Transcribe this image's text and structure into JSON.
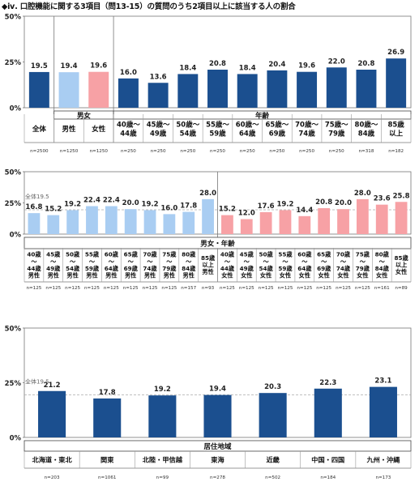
{
  "title": "◆ⅳ. 口腔機能に関する3項目（問13-15）の質問のうち2項目以上に該当する人の割合",
  "colors": {
    "navy": "#1B4F8F",
    "blue_light": "#A9CDF2",
    "pink": "#F7A1A5",
    "gray_line": "#AAAAAA"
  },
  "chart_data": [
    {
      "type": "bar",
      "ylim": [
        0,
        50
      ],
      "yticks": [
        "0%",
        "25%",
        "50%"
      ],
      "reference": null,
      "categories": [
        "全体",
        "男性",
        "女性",
        "40歳～44歳",
        "45歳～49歳",
        "50歳～54歳",
        "55歳～59歳",
        "60歳～64歳",
        "65歳～69歳",
        "70歳～74歳",
        "75歳～79歳",
        "80歳～84歳",
        "85歳以上"
      ],
      "tick_labels": [
        [
          "全体"
        ],
        [
          "男性"
        ],
        [
          "女性"
        ],
        [
          "40歳～",
          "44歳"
        ],
        [
          "45歳～",
          "49歳"
        ],
        [
          "50歳～",
          "54歳"
        ],
        [
          "55歳～",
          "59歳"
        ],
        [
          "60歳～",
          "64歳"
        ],
        [
          "65歳～",
          "69歳"
        ],
        [
          "70歳～",
          "74歳"
        ],
        [
          "75歳～",
          "79歳"
        ],
        [
          "80歳～",
          "84歳"
        ],
        [
          "85歳",
          "以上"
        ]
      ],
      "values": [
        19.5,
        19.4,
        19.6,
        16.0,
        13.6,
        18.4,
        20.8,
        18.4,
        20.4,
        19.6,
        22.0,
        20.8,
        26.9
      ],
      "value_labels": [
        "19.5",
        "19.4",
        "19.6",
        "16.0",
        "13.6",
        "18.4",
        "20.8",
        "18.4",
        "20.4",
        "19.6",
        "22.0",
        "20.8",
        "26.9"
      ],
      "n": [
        "n=2500",
        "n=1250",
        "n=1250",
        "n=250",
        "n=250",
        "n=250",
        "n=250",
        "n=250",
        "n=250",
        "n=250",
        "n=250",
        "n=318",
        "n=182"
      ],
      "colors": [
        "navy",
        "blue_light",
        "pink",
        "navy",
        "navy",
        "navy",
        "navy",
        "navy",
        "navy",
        "navy",
        "navy",
        "navy",
        "navy"
      ],
      "groups": [
        {
          "label": "",
          "from": 0,
          "to": 0
        },
        {
          "label": "男女",
          "from": 1,
          "to": 2
        },
        {
          "label": "年齢",
          "from": 3,
          "to": 12
        }
      ]
    },
    {
      "type": "bar",
      "ylim": [
        0,
        50
      ],
      "yticks": [
        "0%",
        "25%",
        "50%"
      ],
      "reference": {
        "label": "全体19.5",
        "value": 19.5
      },
      "categories": [
        "40歳～44歳男性",
        "45歳～49歳男性",
        "50歳～54歳男性",
        "55歳～59歳男性",
        "60歳～64歳男性",
        "65歳～69歳男性",
        "70歳～74歳男性",
        "75歳～79歳男性",
        "80歳～84歳男性",
        "85歳以上男性",
        "40歳～44歳女性",
        "45歳～49歳女性",
        "50歳～54歳女性",
        "55歳～59歳女性",
        "60歳～64歳女性",
        "65歳～69歳女性",
        "70歳～74歳女性",
        "75歳～79歳女性",
        "80歳～84歳女性",
        "85歳以上女性"
      ],
      "tick_labels": [
        [
          "40歳",
          "～",
          "44歳",
          "男性"
        ],
        [
          "45歳",
          "～",
          "49歳",
          "男性"
        ],
        [
          "50歳",
          "～",
          "54歳",
          "男性"
        ],
        [
          "55歳",
          "～",
          "59歳",
          "男性"
        ],
        [
          "60歳",
          "～",
          "64歳",
          "男性"
        ],
        [
          "65歳",
          "～",
          "69歳",
          "男性"
        ],
        [
          "70歳",
          "～",
          "74歳",
          "男性"
        ],
        [
          "75歳",
          "～",
          "79歳",
          "男性"
        ],
        [
          "80歳",
          "～",
          "84歳",
          "男性"
        ],
        [
          "85歳",
          "以上",
          "男性"
        ],
        [
          "40歳",
          "～",
          "44歳",
          "女性"
        ],
        [
          "45歳",
          "～",
          "49歳",
          "女性"
        ],
        [
          "50歳",
          "～",
          "54歳",
          "女性"
        ],
        [
          "55歳",
          "～",
          "59歳",
          "女性"
        ],
        [
          "60歳",
          "～",
          "64歳",
          "女性"
        ],
        [
          "65歳",
          "～",
          "69歳",
          "女性"
        ],
        [
          "70歳",
          "～",
          "74歳",
          "女性"
        ],
        [
          "75歳",
          "～",
          "79歳",
          "女性"
        ],
        [
          "80歳",
          "～",
          "84歳",
          "女性"
        ],
        [
          "85歳",
          "以上",
          "女性"
        ]
      ],
      "values": [
        16.8,
        15.2,
        19.2,
        22.4,
        22.4,
        20.0,
        19.2,
        16.0,
        17.8,
        28.0,
        15.2,
        12.0,
        17.6,
        19.2,
        14.4,
        20.8,
        20.0,
        28.0,
        23.6,
        25.8
      ],
      "value_labels": [
        "16.8",
        "15.2",
        "19.2",
        "22.4",
        "22.4",
        "20.0",
        "19.2",
        "16.0",
        "17.8",
        "28.0",
        "15.2",
        "12.0",
        "17.6",
        "19.2",
        "14.4",
        "20.8",
        "20.0",
        "28.0",
        "23.6",
        "25.8"
      ],
      "n": [
        "n=125",
        "n=125",
        "n=125",
        "n=125",
        "n=125",
        "n=125",
        "n=125",
        "n=125",
        "n=157",
        "n=93",
        "n=125",
        "n=125",
        "n=125",
        "n=125",
        "n=125",
        "n=125",
        "n=125",
        "n=125",
        "n=161",
        "n=89"
      ],
      "colors": [
        "blue_light",
        "blue_light",
        "blue_light",
        "blue_light",
        "blue_light",
        "blue_light",
        "blue_light",
        "blue_light",
        "blue_light",
        "blue_light",
        "pink",
        "pink",
        "pink",
        "pink",
        "pink",
        "pink",
        "pink",
        "pink",
        "pink",
        "pink"
      ],
      "groups": [
        {
          "label": "男女・年齢",
          "from": 0,
          "to": 19
        }
      ]
    },
    {
      "type": "bar",
      "ylim": [
        0,
        50
      ],
      "yticks": [
        "0%",
        "25%",
        "50%"
      ],
      "reference": {
        "label": "全体19.5",
        "value": 19.5
      },
      "categories": [
        "北海道・東北",
        "関東",
        "北陸・甲信越",
        "東海",
        "近畿",
        "中国・四国",
        "九州・沖縄"
      ],
      "tick_labels": [
        [
          "北海道・東北"
        ],
        [
          "関東"
        ],
        [
          "北陸・甲信越"
        ],
        [
          "東海"
        ],
        [
          "近畿"
        ],
        [
          "中国・四国"
        ],
        [
          "九州・沖縄"
        ]
      ],
      "values": [
        21.2,
        17.8,
        19.2,
        19.4,
        20.3,
        22.3,
        23.1
      ],
      "value_labels": [
        "21.2",
        "17.8",
        "19.2",
        "19.4",
        "20.3",
        "22.3",
        "23.1"
      ],
      "n": [
        "n=203",
        "n=1061",
        "n=99",
        "n=278",
        "n=502",
        "n=184",
        "n=173"
      ],
      "colors": [
        "navy",
        "navy",
        "navy",
        "navy",
        "navy",
        "navy",
        "navy"
      ],
      "groups": [
        {
          "label": "居住地域",
          "from": 0,
          "to": 6
        }
      ]
    }
  ]
}
